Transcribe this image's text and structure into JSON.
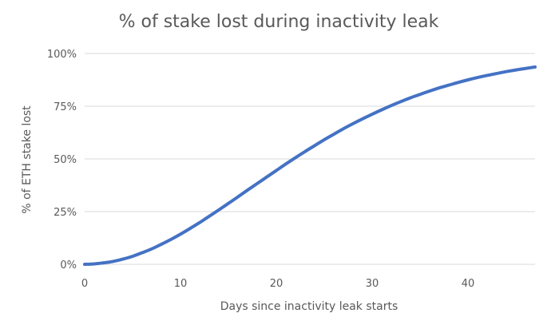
{
  "chart_data": {
    "type": "line",
    "title": "% of stake lost during inactivity leak",
    "xlabel": "Days since inactivity leak starts",
    "ylabel": "% of ETH stake lost",
    "x_ticks": [
      "0",
      "10",
      "20",
      "30",
      "40"
    ],
    "y_ticks": [
      "0%",
      "25%",
      "50%",
      "75%",
      "100%"
    ],
    "xlim": [
      0,
      47
    ],
    "ylim": [
      0,
      100
    ],
    "grid": "horizontal",
    "legend": "none",
    "colors": {
      "line": "#4472C4",
      "grid": "#d9d9d9",
      "text": "#595959"
    },
    "series": [
      {
        "x": [
          0,
          1,
          2,
          3,
          4,
          5,
          6,
          7,
          8,
          9,
          10,
          11,
          12,
          13,
          14,
          15,
          16,
          17,
          18,
          19,
          20,
          21,
          22,
          23,
          24,
          25,
          26,
          27,
          28,
          29,
          30,
          31,
          32,
          33,
          34,
          35,
          36,
          37,
          38,
          39,
          40,
          41,
          42,
          43,
          44,
          45,
          46,
          47
        ],
        "y": [
          0.0,
          0.2,
          0.7,
          1.4,
          2.5,
          3.8,
          5.5,
          7.3,
          9.5,
          11.8,
          14.3,
          17.0,
          19.8,
          22.8,
          25.8,
          28.9,
          32.0,
          35.2,
          38.3,
          41.4,
          44.5,
          47.6,
          50.6,
          53.5,
          56.3,
          59.1,
          61.7,
          64.3,
          66.7,
          69.0,
          71.2,
          73.3,
          75.3,
          77.2,
          79.0,
          80.6,
          82.2,
          83.7,
          85.0,
          86.3,
          87.5,
          88.6,
          89.6,
          90.5,
          91.4,
          92.2,
          92.9,
          93.6
        ]
      }
    ]
  }
}
